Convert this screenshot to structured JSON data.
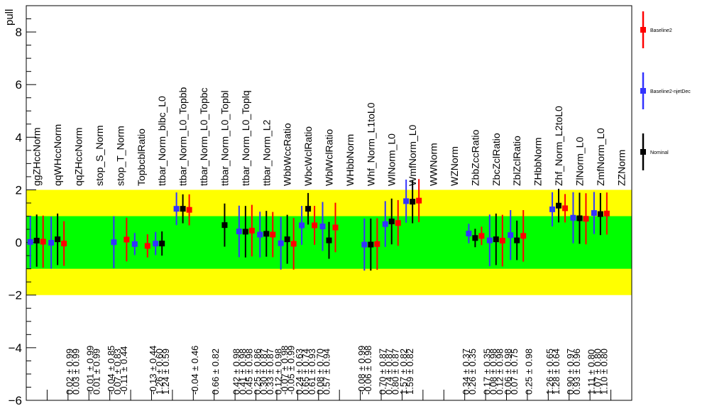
{
  "chart_data": {
    "type": "scatter",
    "ylabel": "pull",
    "ylim": [
      -6,
      9
    ],
    "yticks": [
      -6,
      -4,
      -2,
      0,
      2,
      4,
      6,
      8
    ],
    "bands": [
      {
        "name": "2-sigma",
        "lo": -2,
        "hi": 2,
        "color": "#ffff00"
      },
      {
        "name": "1-sigma",
        "lo": -1,
        "hi": 1,
        "color": "#00ff00"
      }
    ],
    "categories": [
      "ggZHccNorm",
      "qqWHccNorm",
      "qqZHccNorm",
      "stop_S_Norm",
      "stop_T_Norm",
      "TopbcblRatio",
      "ttbar_Norm_blbc_L0",
      "ttbar_Norm_L0_Topbb",
      "ttbar_Norm_L0_Topbc",
      "ttbar_Norm_L0_Topbl",
      "ttbar_Norm_L0_Toplq",
      "ttbar_Norm_L2",
      "WbbWccRatio",
      "WbcWclRatio",
      "WblWclRatio",
      "WHbbNorm",
      "Whf_Norm_L1toL0",
      "WlNorm_L0",
      "WmfNorm_L0",
      "WWNorm",
      "WZNorm",
      "ZbbZccRatio",
      "ZbcZclRatio",
      "ZblZclRatio",
      "ZHbbNorm",
      "Zhf_Norm_L2toL0",
      "ZlNorm_L0",
      "ZmfNorm_L0",
      "ZZNorm"
    ],
    "series": [
      {
        "name": "Baseline2-njetDec",
        "color": "#3333ff",
        "values": [
          0.02,
          -0.01,
          null,
          null,
          0.01,
          -0.06,
          -0.04,
          1.28,
          null,
          null,
          0.42,
          0.3,
          -0.03,
          0.65,
          0.61,
          null,
          -0.08,
          0.7,
          1.57,
          null,
          null,
          0.34,
          0.08,
          0.28,
          null,
          1.26,
          0.94,
          1.12,
          null
        ],
        "errors": [
          0.99,
          0.99,
          null,
          null,
          0.99,
          0.42,
          0.44,
          0.62,
          null,
          null,
          0.98,
          0.87,
          1.0,
          0.74,
          0.93,
          null,
          0.99,
          0.87,
          0.82,
          null,
          null,
          0.37,
          0.98,
          0.95,
          null,
          0.65,
          0.97,
          0.8,
          null
        ]
      },
      {
        "name": "Nominal",
        "color": "#000000",
        "values": [
          0.07,
          0.12,
          null,
          null,
          null,
          null,
          -0.04,
          1.28,
          null,
          0.66,
          0.41,
          0.33,
          0.12,
          1.28,
          0.08,
          null,
          -0.08,
          0.8,
          1.55,
          null,
          null,
          0.17,
          0.12,
          0.08,
          null,
          1.4,
          0.92,
          1.08,
          null
        ],
        "errors": [
          0.99,
          0.98,
          null,
          null,
          null,
          null,
          0.46,
          0.55,
          null,
          0.82,
          0.98,
          0.87,
          0.93,
          0.6,
          0.7,
          null,
          0.99,
          0.87,
          0.82,
          null,
          null,
          0.35,
          0.98,
          0.75,
          null,
          0.64,
          0.97,
          0.8,
          null
        ]
      },
      {
        "name": "Baseline2",
        "color": "#ff0000",
        "values": [
          0.03,
          -0.04,
          null,
          null,
          0.11,
          -0.13,
          null,
          1.24,
          null,
          null,
          0.45,
          0.3,
          -0.05,
          0.65,
          0.57,
          null,
          -0.06,
          0.74,
          1.59,
          null,
          null,
          0.25,
          0.07,
          0.25,
          null,
          1.3,
          0.9,
          1.1,
          null
        ],
        "errors": [
          0.99,
          0.85,
          null,
          null,
          0.83,
          0.44,
          null,
          0.59,
          null,
          null,
          0.98,
          0.86,
          0.98,
          0.74,
          0.94,
          null,
          0.98,
          0.87,
          0.82,
          null,
          null,
          0.35,
          0.98,
          0.98,
          null,
          0.54,
          0.97,
          0.8,
          null
        ]
      }
    ],
    "value_labels": [
      {
        "cat": 3,
        "lines": [
          "0.02 ± 0.99",
          "0.03 ± 0.99"
        ]
      },
      {
        "cat": 4,
        "lines": [
          "-0.01 ± 0.99",
          "0.01 ± 0.99"
        ]
      },
      {
        "cat": 5,
        "lines": [
          "-0.04 ± 0.85",
          "0.07 ± 0.83",
          "-0.11 ± 0.44"
        ]
      },
      {
        "cat": 7,
        "lines": [
          "-0.13 ± 0.44",
          "1.26 ± 0.60",
          "1.24 ± 0.59"
        ]
      },
      {
        "cat": 9,
        "lines": [
          "-0.04 ± 0.46"
        ]
      },
      {
        "cat": 10,
        "lines": [
          "0.66 ± 0.82"
        ]
      },
      {
        "cat": 11,
        "lines": [
          "0.42 ± 0.98",
          "0.41 ± 0.98",
          "0.45 ± 0.98"
        ]
      },
      {
        "cat": 12,
        "lines": [
          "0.25 ± 0.86",
          "0.30 ± 0.87",
          "0.33 ± 0.87"
        ]
      },
      {
        "cat": 13,
        "lines": [
          "0.12 ± 0.98",
          "-0.07 ± 0.98",
          "-0.05 ± 0.99"
        ]
      },
      {
        "cat": 14,
        "lines": [
          "0.24 ± 0.63",
          "0.65 ± 0.74",
          "0.61 ± 0.93"
        ]
      },
      {
        "cat": 15,
        "lines": [
          "0.08 ± 0.70",
          "0.57 ± 0.94"
        ]
      },
      {
        "cat": 17,
        "lines": [
          "-0.08 ± 0.99",
          "-0.06 ± 0.98"
        ]
      },
      {
        "cat": 18,
        "lines": [
          "0.70 ± 0.87",
          "0.74 ± 0.87",
          "0.80 ± 0.87"
        ]
      },
      {
        "cat": 19,
        "lines": [
          "1.57 ± 0.82",
          "1.59 ± 0.82"
        ]
      },
      {
        "cat": 22,
        "lines": [
          "0.34 ± 0.37",
          "0.26 ± 0.35"
        ]
      },
      {
        "cat": 23,
        "lines": [
          "0.17 ± 0.35",
          "0.08 ± 0.98",
          "0.12 ± 0.98"
        ]
      },
      {
        "cat": 24,
        "lines": [
          "0.06 ± 0.98",
          "0.07 ± 0.75"
        ]
      },
      {
        "cat": 25,
        "lines": [
          "0.25 ± 0.98"
        ]
      },
      {
        "cat": 26,
        "lines": [
          "1.26 ± 0.65",
          "1.28 ± 0.64"
        ]
      },
      {
        "cat": 27,
        "lines": [
          "0.90 ± 0.97",
          "0.93 ± 0.96"
        ]
      },
      {
        "cat": 28,
        "lines": [
          "1.11 ± 0.80",
          "1.07 ± 0.80",
          "1.10 ± 0.80"
        ]
      }
    ],
    "legend": {
      "placement": "right",
      "entries": [
        {
          "label": "Baseline2",
          "color": "#ff0000"
        },
        {
          "label": "Baseline2-njetDec",
          "color": "#3333ff"
        },
        {
          "label": "Nominal",
          "color": "#000000"
        }
      ]
    }
  }
}
